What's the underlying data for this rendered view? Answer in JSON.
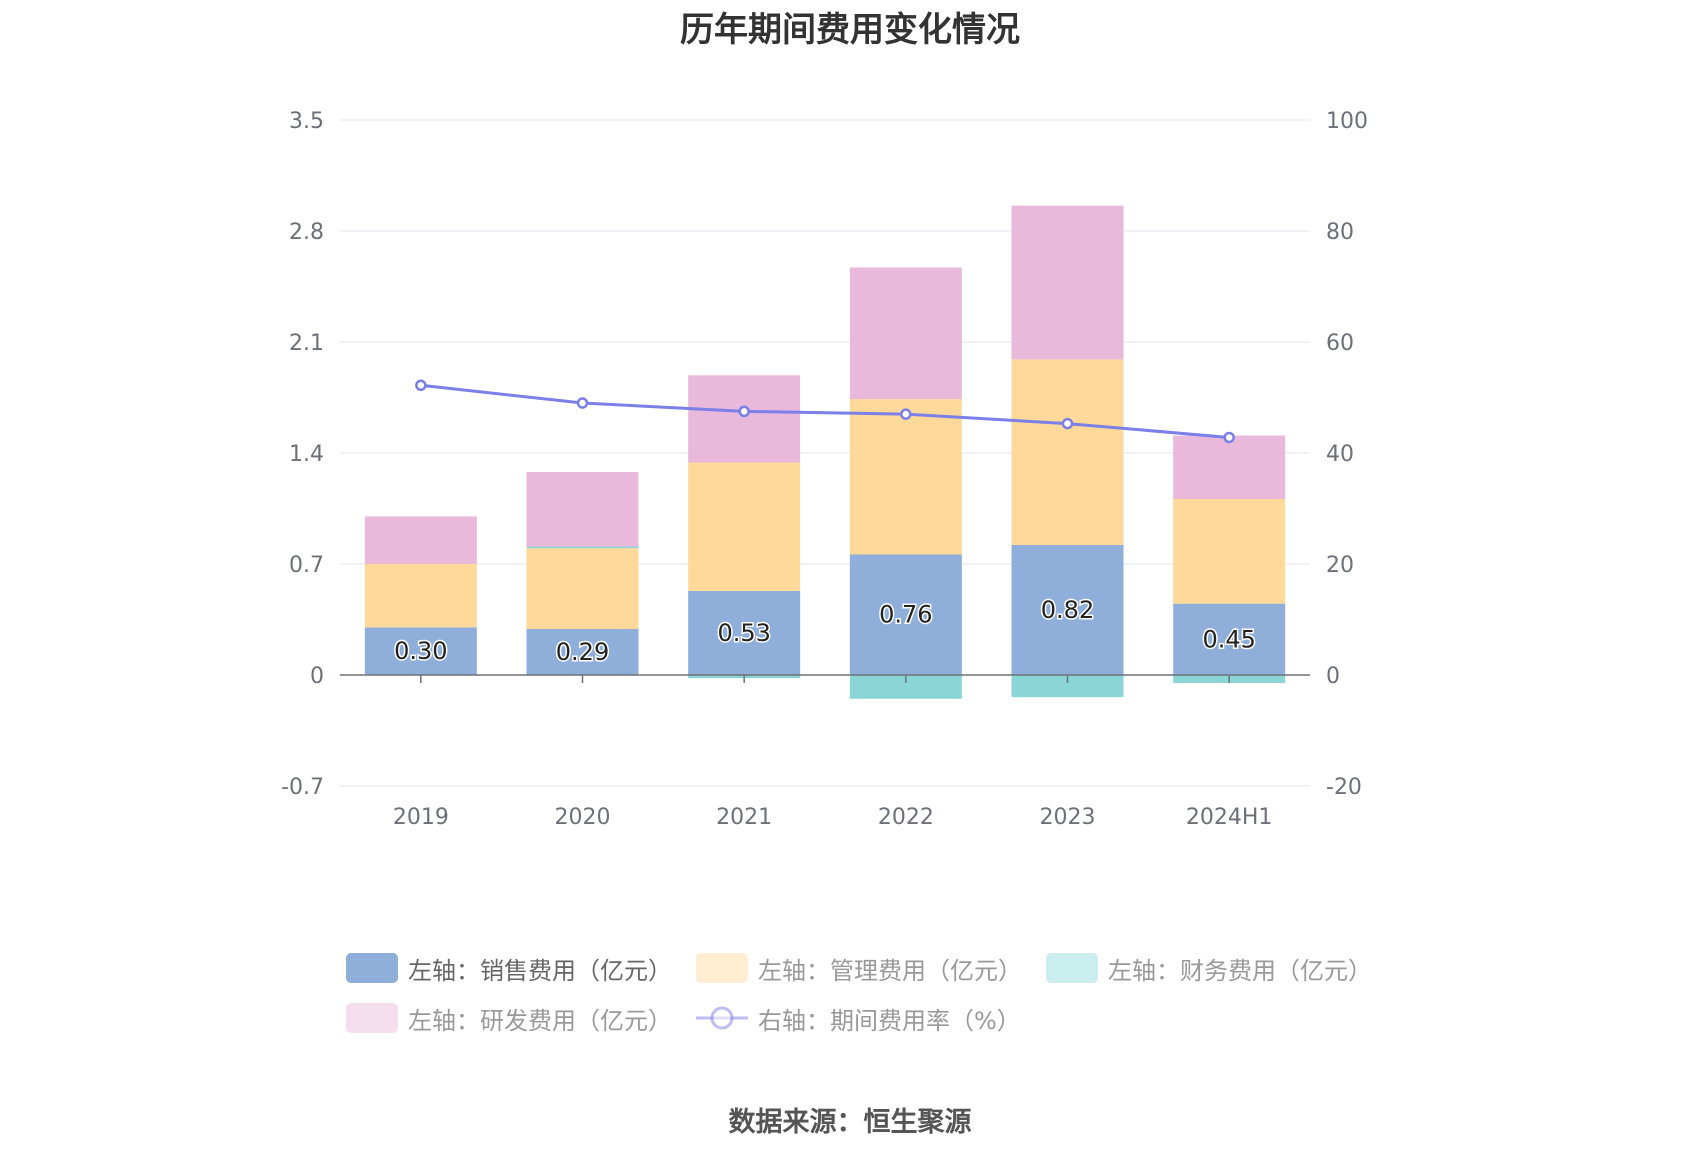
{
  "chart_data": {
    "type": "bar",
    "title": "历年期间费用变化情况",
    "categories": [
      "2019",
      "2020",
      "2021",
      "2022",
      "2023",
      "2024H1"
    ],
    "left_axis": {
      "min": -0.7,
      "max": 3.5,
      "ticks": [
        "-0.7",
        "0",
        "0.7",
        "1.4",
        "2.1",
        "2.8",
        "3.5"
      ]
    },
    "right_axis": {
      "min": -20,
      "max": 100,
      "ticks": [
        "-20",
        "0",
        "20",
        "40",
        "60",
        "80",
        "100"
      ]
    },
    "grid": true,
    "legend_position": "bottom",
    "series": [
      {
        "name": "左轴：销售费用（亿元）",
        "axis": "left",
        "kind": "bar",
        "color": "#8fafda",
        "values": [
          0.3,
          0.29,
          0.53,
          0.76,
          0.82,
          0.45
        ],
        "labels": [
          "0.30",
          "0.29",
          "0.53",
          "0.76",
          "0.82",
          "0.45"
        ]
      },
      {
        "name": "左轴：管理费用（亿元）",
        "axis": "left",
        "kind": "bar",
        "color": "#ffd999",
        "values": [
          0.4,
          0.51,
          0.81,
          0.98,
          1.17,
          0.66
        ]
      },
      {
        "name": "左轴：财务费用（亿元）",
        "axis": "left",
        "kind": "bar",
        "color": "#8ad6d6",
        "values": [
          0.0,
          0.01,
          -0.02,
          -0.15,
          -0.14,
          -0.05
        ]
      },
      {
        "name": "左轴：研发费用（亿元）",
        "axis": "left",
        "kind": "bar",
        "color": "#e8b9da",
        "values": [
          0.3,
          0.47,
          0.55,
          0.83,
          0.97,
          0.4
        ]
      },
      {
        "name": "右轴：期间费用率（%）",
        "axis": "right",
        "kind": "line",
        "color": "#7b7fe8",
        "values": [
          52.2,
          49.0,
          47.5,
          47.0,
          45.3,
          42.8
        ]
      }
    ],
    "legend_dimmed": [
      false,
      true,
      true,
      true,
      true
    ]
  },
  "source": "数据来源：恒生聚源"
}
